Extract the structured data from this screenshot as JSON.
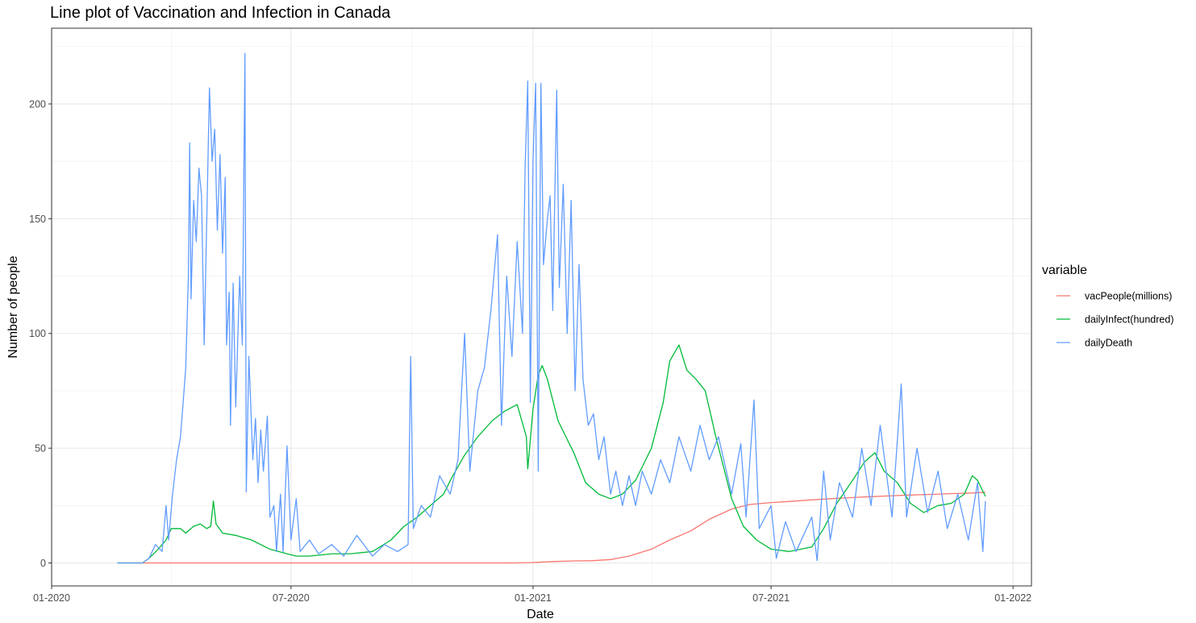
{
  "chart_data": {
    "type": "line",
    "title": "Line plot of Vaccination and Infection in Canada",
    "xlabel": "Date",
    "ylabel": "Number of people",
    "x_ticks": [
      "01-2020",
      "07-2020",
      "01-2021",
      "07-2021",
      "01-2022"
    ],
    "y_ticks": [
      "0",
      "50",
      "100",
      "150",
      "200"
    ],
    "xlim": [
      "2020-01-01",
      "2022-01-15"
    ],
    "ylim": [
      -10,
      233
    ],
    "grid": true,
    "legend_position": "right",
    "legend_title": "variable",
    "series": [
      {
        "name": "vacPeople(millions)",
        "color": "#F8766D",
        "points": [
          [
            "2020-02-20",
            0
          ],
          [
            "2020-12-15",
            0
          ],
          [
            "2020-12-31",
            0.2
          ],
          [
            "2021-01-15",
            0.6
          ],
          [
            "2021-02-01",
            0.9
          ],
          [
            "2021-02-15",
            1.0
          ],
          [
            "2021-03-01",
            1.5
          ],
          [
            "2021-03-15",
            3.0
          ],
          [
            "2021-04-01",
            6.0
          ],
          [
            "2021-04-15",
            10.0
          ],
          [
            "2021-05-01",
            14.0
          ],
          [
            "2021-05-15",
            19.0
          ],
          [
            "2021-06-01",
            23.5
          ],
          [
            "2021-06-15",
            25.5
          ],
          [
            "2021-07-01",
            26.3
          ],
          [
            "2021-07-15",
            26.8
          ],
          [
            "2021-08-01",
            27.5
          ],
          [
            "2021-08-15",
            28.0
          ],
          [
            "2021-09-01",
            28.5
          ],
          [
            "2021-09-15",
            28.9
          ],
          [
            "2021-10-01",
            29.3
          ],
          [
            "2021-10-15",
            29.6
          ],
          [
            "2021-11-01",
            29.9
          ],
          [
            "2021-11-15",
            30.2
          ],
          [
            "2021-12-01",
            30.5
          ],
          [
            "2021-12-11",
            30.8
          ]
        ]
      },
      {
        "name": "dailyInfect(hundred)",
        "color": "#00BA38",
        "points": [
          [
            "2020-02-20",
            0
          ],
          [
            "2020-03-10",
            0
          ],
          [
            "2020-03-15",
            2
          ],
          [
            "2020-03-22",
            6
          ],
          [
            "2020-03-28",
            10
          ],
          [
            "2020-04-01",
            15
          ],
          [
            "2020-04-08",
            15
          ],
          [
            "2020-04-12",
            13
          ],
          [
            "2020-04-18",
            16
          ],
          [
            "2020-04-23",
            17
          ],
          [
            "2020-04-28",
            15
          ],
          [
            "2020-05-01",
            16
          ],
          [
            "2020-05-03",
            27
          ],
          [
            "2020-05-05",
            17
          ],
          [
            "2020-05-10",
            13
          ],
          [
            "2020-05-20",
            12
          ],
          [
            "2020-06-01",
            10
          ],
          [
            "2020-06-15",
            6
          ],
          [
            "2020-06-28",
            4
          ],
          [
            "2020-07-05",
            3
          ],
          [
            "2020-07-15",
            3
          ],
          [
            "2020-08-01",
            4
          ],
          [
            "2020-08-15",
            4
          ],
          [
            "2020-09-01",
            5
          ],
          [
            "2020-09-15",
            10
          ],
          [
            "2020-09-25",
            16
          ],
          [
            "2020-10-05",
            20
          ],
          [
            "2020-10-15",
            25
          ],
          [
            "2020-10-25",
            30
          ],
          [
            "2020-11-01",
            38
          ],
          [
            "2020-11-10",
            47
          ],
          [
            "2020-11-20",
            55
          ],
          [
            "2020-12-01",
            62
          ],
          [
            "2020-12-10",
            66
          ],
          [
            "2020-12-20",
            69
          ],
          [
            "2020-12-27",
            55
          ],
          [
            "2020-12-28",
            41
          ],
          [
            "2021-01-01",
            67
          ],
          [
            "2021-01-05",
            82
          ],
          [
            "2021-01-08",
            86
          ],
          [
            "2021-01-12",
            80
          ],
          [
            "2021-01-20",
            62
          ],
          [
            "2021-02-01",
            48
          ],
          [
            "2021-02-10",
            35
          ],
          [
            "2021-02-20",
            30
          ],
          [
            "2021-03-01",
            28
          ],
          [
            "2021-03-10",
            30
          ],
          [
            "2021-03-20",
            36
          ],
          [
            "2021-04-01",
            50
          ],
          [
            "2021-04-10",
            70
          ],
          [
            "2021-04-15",
            88
          ],
          [
            "2021-04-22",
            95
          ],
          [
            "2021-04-28",
            84
          ],
          [
            "2021-05-05",
            80
          ],
          [
            "2021-05-12",
            75
          ],
          [
            "2021-05-20",
            55
          ],
          [
            "2021-06-01",
            28
          ],
          [
            "2021-06-10",
            16
          ],
          [
            "2021-06-20",
            10
          ],
          [
            "2021-07-01",
            6
          ],
          [
            "2021-07-15",
            5
          ],
          [
            "2021-08-01",
            7
          ],
          [
            "2021-08-10",
            15
          ],
          [
            "2021-08-20",
            26
          ],
          [
            "2021-09-01",
            36
          ],
          [
            "2021-09-10",
            44
          ],
          [
            "2021-09-18",
            48
          ],
          [
            "2021-09-25",
            40
          ],
          [
            "2021-10-05",
            35
          ],
          [
            "2021-10-15",
            26
          ],
          [
            "2021-10-25",
            22
          ],
          [
            "2021-11-05",
            25
          ],
          [
            "2021-11-15",
            26
          ],
          [
            "2021-11-25",
            30
          ],
          [
            "2021-12-01",
            38
          ],
          [
            "2021-12-05",
            36
          ],
          [
            "2021-12-11",
            29
          ]
        ]
      },
      {
        "name": "dailyDeath",
        "color": "#619CFF",
        "points": [
          [
            "2020-02-20",
            0
          ],
          [
            "2020-03-10",
            0
          ],
          [
            "2020-03-15",
            2
          ],
          [
            "2020-03-20",
            8
          ],
          [
            "2020-03-25",
            5
          ],
          [
            "2020-03-28",
            25
          ],
          [
            "2020-03-30",
            10
          ],
          [
            "2020-04-02",
            30
          ],
          [
            "2020-04-05",
            45
          ],
          [
            "2020-04-08",
            55
          ],
          [
            "2020-04-10",
            70
          ],
          [
            "2020-04-12",
            85
          ],
          [
            "2020-04-14",
            125
          ],
          [
            "2020-04-15",
            183
          ],
          [
            "2020-04-16",
            115
          ],
          [
            "2020-04-18",
            158
          ],
          [
            "2020-04-20",
            140
          ],
          [
            "2020-04-22",
            172
          ],
          [
            "2020-04-24",
            160
          ],
          [
            "2020-04-26",
            95
          ],
          [
            "2020-04-28",
            150
          ],
          [
            "2020-04-30",
            207
          ],
          [
            "2020-05-02",
            175
          ],
          [
            "2020-05-04",
            189
          ],
          [
            "2020-05-06",
            145
          ],
          [
            "2020-05-08",
            178
          ],
          [
            "2020-05-10",
            135
          ],
          [
            "2020-05-12",
            168
          ],
          [
            "2020-05-13",
            95
          ],
          [
            "2020-05-15",
            118
          ],
          [
            "2020-05-16",
            60
          ],
          [
            "2020-05-18",
            122
          ],
          [
            "2020-05-20",
            68
          ],
          [
            "2020-05-23",
            125
          ],
          [
            "2020-05-25",
            95
          ],
          [
            "2020-05-27",
            222
          ],
          [
            "2020-05-28",
            31
          ],
          [
            "2020-05-30",
            90
          ],
          [
            "2020-06-02",
            45
          ],
          [
            "2020-06-04",
            63
          ],
          [
            "2020-06-06",
            35
          ],
          [
            "2020-06-08",
            58
          ],
          [
            "2020-06-10",
            40
          ],
          [
            "2020-06-13",
            64
          ],
          [
            "2020-06-15",
            20
          ],
          [
            "2020-06-18",
            25
          ],
          [
            "2020-06-20",
            5
          ],
          [
            "2020-06-23",
            30
          ],
          [
            "2020-06-25",
            5
          ],
          [
            "2020-06-28",
            51
          ],
          [
            "2020-07-01",
            10
          ],
          [
            "2020-07-05",
            28
          ],
          [
            "2020-07-08",
            5
          ],
          [
            "2020-07-15",
            10
          ],
          [
            "2020-07-22",
            4
          ],
          [
            "2020-08-01",
            8
          ],
          [
            "2020-08-10",
            3
          ],
          [
            "2020-08-20",
            12
          ],
          [
            "2020-09-01",
            3
          ],
          [
            "2020-09-10",
            8
          ],
          [
            "2020-09-20",
            5
          ],
          [
            "2020-09-28",
            8
          ],
          [
            "2020-09-30",
            90
          ],
          [
            "2020-10-02",
            15
          ],
          [
            "2020-10-08",
            25
          ],
          [
            "2020-10-15",
            20
          ],
          [
            "2020-10-22",
            38
          ],
          [
            "2020-10-30",
            30
          ],
          [
            "2020-11-05",
            45
          ],
          [
            "2020-11-10",
            100
          ],
          [
            "2020-11-14",
            40
          ],
          [
            "2020-11-20",
            75
          ],
          [
            "2020-11-25",
            85
          ],
          [
            "2020-11-30",
            110
          ],
          [
            "2020-12-05",
            143
          ],
          [
            "2020-12-08",
            60
          ],
          [
            "2020-12-12",
            125
          ],
          [
            "2020-12-16",
            90
          ],
          [
            "2020-12-20",
            140
          ],
          [
            "2020-12-24",
            100
          ],
          [
            "2020-12-26",
            172
          ],
          [
            "2020-12-28",
            210
          ],
          [
            "2020-12-30",
            70
          ],
          [
            "2021-01-01",
            175
          ],
          [
            "2021-01-03",
            209
          ],
          [
            "2021-01-05",
            40
          ],
          [
            "2021-01-07",
            209
          ],
          [
            "2021-01-09",
            130
          ],
          [
            "2021-01-12",
            150
          ],
          [
            "2021-01-14",
            160
          ],
          [
            "2021-01-16",
            110
          ],
          [
            "2021-01-19",
            206
          ],
          [
            "2021-01-21",
            120
          ],
          [
            "2021-01-24",
            165
          ],
          [
            "2021-01-27",
            100
          ],
          [
            "2021-01-30",
            158
          ],
          [
            "2021-02-02",
            75
          ],
          [
            "2021-02-05",
            130
          ],
          [
            "2021-02-08",
            80
          ],
          [
            "2021-02-12",
            60
          ],
          [
            "2021-02-16",
            65
          ],
          [
            "2021-02-20",
            45
          ],
          [
            "2021-02-24",
            55
          ],
          [
            "2021-03-01",
            30
          ],
          [
            "2021-03-05",
            40
          ],
          [
            "2021-03-10",
            25
          ],
          [
            "2021-03-15",
            38
          ],
          [
            "2021-03-20",
            25
          ],
          [
            "2021-03-25",
            40
          ],
          [
            "2021-04-01",
            30
          ],
          [
            "2021-04-08",
            45
          ],
          [
            "2021-04-15",
            35
          ],
          [
            "2021-04-22",
            55
          ],
          [
            "2021-05-01",
            40
          ],
          [
            "2021-05-08",
            60
          ],
          [
            "2021-05-15",
            45
          ],
          [
            "2021-05-22",
            55
          ],
          [
            "2021-06-01",
            30
          ],
          [
            "2021-06-08",
            52
          ],
          [
            "2021-06-12",
            20
          ],
          [
            "2021-06-18",
            71
          ],
          [
            "2021-06-22",
            15
          ],
          [
            "2021-07-01",
            25
          ],
          [
            "2021-07-05",
            2
          ],
          [
            "2021-07-12",
            18
          ],
          [
            "2021-07-20",
            5
          ],
          [
            "2021-08-01",
            20
          ],
          [
            "2021-08-05",
            1
          ],
          [
            "2021-08-10",
            40
          ],
          [
            "2021-08-15",
            10
          ],
          [
            "2021-08-22",
            35
          ],
          [
            "2021-09-01",
            20
          ],
          [
            "2021-09-08",
            50
          ],
          [
            "2021-09-15",
            25
          ],
          [
            "2021-09-22",
            60
          ],
          [
            "2021-10-01",
            20
          ],
          [
            "2021-10-08",
            78
          ],
          [
            "2021-10-12",
            20
          ],
          [
            "2021-10-20",
            50
          ],
          [
            "2021-10-28",
            22
          ],
          [
            "2021-11-05",
            40
          ],
          [
            "2021-11-12",
            15
          ],
          [
            "2021-11-20",
            30
          ],
          [
            "2021-11-28",
            10
          ],
          [
            "2021-12-05",
            35
          ],
          [
            "2021-12-09",
            5
          ],
          [
            "2021-12-11",
            27
          ]
        ]
      }
    ]
  }
}
